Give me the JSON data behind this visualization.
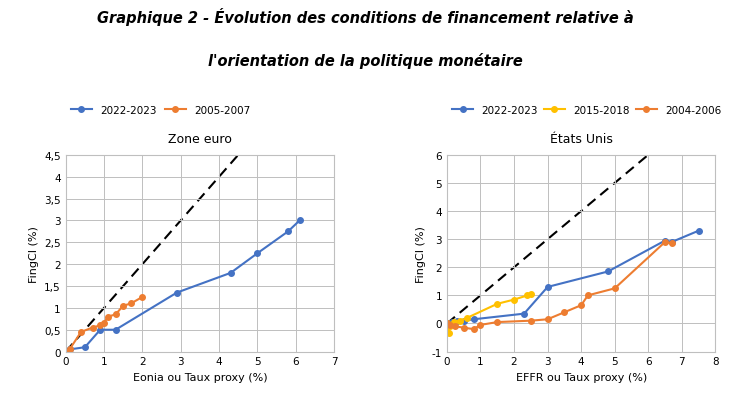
{
  "title_line1": "Graphique 2 - Évolution des conditions de financement relative à",
  "title_line2": "l'orientation de la politique monétaire",
  "left_title": "Zone euro",
  "right_title": "États Unis",
  "left_xlabel": "Eonia ou Taux proxy (%)",
  "right_xlabel": "EFFR ou Taux proxy (%)",
  "ylabel": "FingCI (%)",
  "left_xlim": [
    0,
    7
  ],
  "left_ylim": [
    0,
    4.5
  ],
  "right_xlim": [
    0,
    8
  ],
  "right_ylim": [
    -1,
    6
  ],
  "left_xticks": [
    0,
    1,
    2,
    3,
    4,
    5,
    6,
    7
  ],
  "left_yticks": [
    0,
    0.5,
    1,
    1.5,
    2,
    2.5,
    3,
    3.5,
    4,
    4.5
  ],
  "right_xticks": [
    0,
    1,
    2,
    3,
    4,
    5,
    6,
    7,
    8
  ],
  "right_yticks": [
    -1,
    0,
    1,
    2,
    3,
    4,
    5,
    6
  ],
  "left_series": [
    {
      "label": "2022-2023",
      "color": "#4472C4",
      "x": [
        0.0,
        0.1,
        0.5,
        0.9,
        1.3,
        2.9,
        4.3,
        5.0,
        5.8,
        6.1
      ],
      "y": [
        0.0,
        0.05,
        0.1,
        0.5,
        0.5,
        1.35,
        1.8,
        2.25,
        2.75,
        3.0
      ]
    },
    {
      "label": "2005-2007",
      "color": "#ED7D31",
      "x": [
        0.0,
        0.1,
        0.4,
        0.7,
        0.9,
        1.0,
        1.1,
        1.3,
        1.5,
        1.7,
        2.0
      ],
      "y": [
        0.0,
        0.05,
        0.45,
        0.55,
        0.6,
        0.65,
        0.8,
        0.85,
        1.05,
        1.1,
        1.25
      ]
    }
  ],
  "right_series": [
    {
      "label": "2022-2023",
      "color": "#4472C4",
      "x": [
        0.0,
        0.08,
        0.15,
        0.3,
        0.5,
        0.8,
        2.3,
        3.0,
        4.8,
        6.5,
        6.7,
        7.5
      ],
      "y": [
        0.0,
        0.0,
        0.05,
        0.1,
        0.1,
        0.15,
        0.35,
        1.3,
        1.85,
        2.95,
        2.9,
        3.3
      ]
    },
    {
      "label": "2015-2018",
      "color": "#FFC000",
      "x": [
        0.0,
        0.05,
        0.1,
        0.2,
        0.4,
        0.6,
        1.5,
        2.0,
        2.4,
        2.5
      ],
      "y": [
        0.0,
        -0.35,
        -0.1,
        0.05,
        0.1,
        0.2,
        0.7,
        0.85,
        1.0,
        1.05
      ]
    },
    {
      "label": "2004-2006",
      "color": "#ED7D31",
      "x": [
        0.0,
        0.1,
        0.25,
        0.5,
        0.8,
        1.0,
        1.5,
        2.5,
        3.0,
        3.5,
        4.0,
        4.2,
        5.0,
        6.5,
        6.7
      ],
      "y": [
        0.0,
        -0.05,
        -0.1,
        -0.15,
        -0.2,
        -0.05,
        0.05,
        0.1,
        0.15,
        0.4,
        0.65,
        1.0,
        1.25,
        2.9,
        2.85
      ]
    }
  ],
  "left_diag": {
    "x": [
      0,
      4.5
    ],
    "y": [
      0,
      4.5
    ]
  },
  "right_diag": {
    "x": [
      0,
      6
    ],
    "y": [
      0,
      6
    ]
  },
  "grid_color": "#BFBFBF",
  "bg_color": "#FFFFFF"
}
